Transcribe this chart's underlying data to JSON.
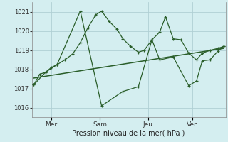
{
  "xlabel": "Pression niveau de la mer( hPa )",
  "background_color": "#d4eef0",
  "grid_color": "#b0cfd4",
  "line_color_dark": "#2a5e2a",
  "ylim": [
    1015.5,
    1021.5
  ],
  "yticks": [
    1016,
    1017,
    1018,
    1019,
    1020,
    1021
  ],
  "xlim": [
    0,
    1
  ],
  "day_labels": [
    "Mer",
    "Sam",
    "Jeu",
    "Ven"
  ],
  "day_positions": [
    0.1,
    0.35,
    0.6,
    0.83
  ],
  "minor_x_ticks": [
    0.0,
    0.05,
    0.1,
    0.15,
    0.2,
    0.25,
    0.3,
    0.35,
    0.4,
    0.45,
    0.5,
    0.55,
    0.6,
    0.65,
    0.7,
    0.75,
    0.8,
    0.85,
    0.9,
    0.95,
    1.0
  ],
  "series_dense_x": [
    0.01,
    0.04,
    0.07,
    0.1,
    0.13,
    0.17,
    0.21,
    0.25,
    0.29,
    0.33,
    0.36,
    0.4,
    0.44,
    0.47,
    0.51,
    0.55,
    0.58,
    0.62,
    0.66,
    0.69,
    0.73,
    0.77,
    0.81,
    0.85,
    0.88,
    0.92,
    0.96,
    0.99
  ],
  "series_dense_y": [
    1017.2,
    1017.75,
    1017.85,
    1018.1,
    1018.25,
    1018.5,
    1018.8,
    1019.4,
    1020.2,
    1020.85,
    1021.05,
    1020.5,
    1020.1,
    1019.6,
    1019.2,
    1018.9,
    1019.0,
    1019.55,
    1019.95,
    1020.75,
    1019.6,
    1019.55,
    1018.85,
    1018.5,
    1018.85,
    1019.0,
    1019.1,
    1019.2
  ],
  "series_sparse_x": [
    0.01,
    0.07,
    0.13,
    0.25,
    0.36,
    0.47,
    0.55,
    0.62,
    0.66,
    0.73,
    0.81,
    0.85,
    0.88,
    0.92,
    0.96,
    0.99
  ],
  "series_sparse_y": [
    1017.2,
    1017.85,
    1018.25,
    1021.05,
    1016.1,
    1016.85,
    1017.1,
    1019.55,
    1018.5,
    1018.65,
    1017.15,
    1017.4,
    1018.45,
    1018.5,
    1018.95,
    1019.2
  ],
  "trend_x": [
    0.01,
    0.99
  ],
  "trend_y": [
    1017.55,
    1019.1
  ]
}
